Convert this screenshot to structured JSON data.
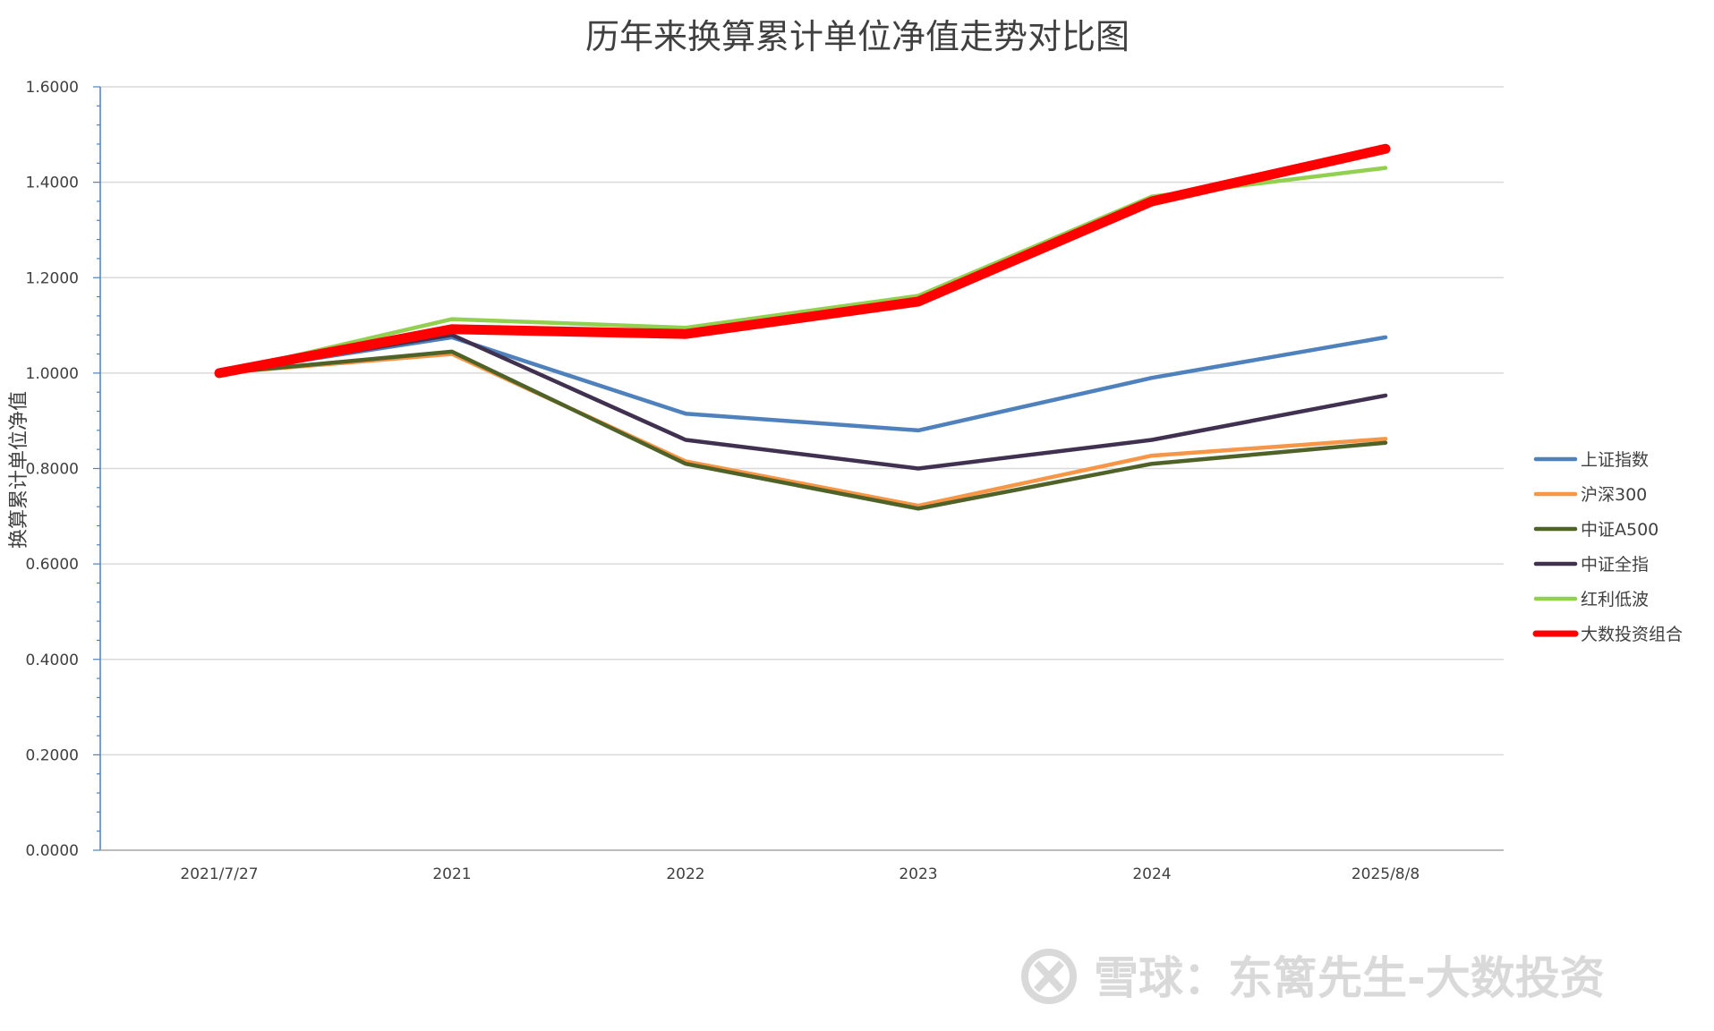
{
  "chart_data": {
    "type": "line",
    "title": "历年来换算累计单位净值走势对比图",
    "xlabel": "",
    "ylabel": "换算累计单位净值",
    "categories": [
      "2021/7/27",
      "2021",
      "2022",
      "2023",
      "2024",
      "2025/8/8"
    ],
    "ylim": [
      0,
      1.6
    ],
    "yticks": [
      "0.0000",
      "0.2000",
      "0.4000",
      "0.6000",
      "0.8000",
      "1.0000",
      "1.2000",
      "1.4000",
      "1.6000"
    ],
    "grid": true,
    "legend_position": "right",
    "series": [
      {
        "name": "上证指数",
        "color": "#4f81bd",
        "values": [
          1.0,
          1.075,
          0.915,
          0.88,
          0.99,
          1.075
        ]
      },
      {
        "name": "沪深300",
        "color": "#f79646",
        "values": [
          1.0,
          1.04,
          0.815,
          0.722,
          0.827,
          0.862
        ]
      },
      {
        "name": "中证A500",
        "color": "#4f6228",
        "values": [
          1.0,
          1.045,
          0.81,
          0.716,
          0.81,
          0.854
        ]
      },
      {
        "name": "中证全指",
        "color": "#403151",
        "values": [
          1.0,
          1.08,
          0.86,
          0.8,
          0.86,
          0.953
        ]
      },
      {
        "name": "红利低波",
        "color": "#92d050",
        "values": [
          1.0,
          1.113,
          1.095,
          1.162,
          1.37,
          1.43
        ]
      },
      {
        "name": "大数投资组合",
        "color": "#ff0000",
        "values": [
          1.0,
          1.092,
          1.082,
          1.15,
          1.36,
          1.47
        ]
      }
    ]
  },
  "watermark": {
    "icon": "snowball-logo-icon",
    "text": "雪球：东篱先生-大数投资"
  }
}
